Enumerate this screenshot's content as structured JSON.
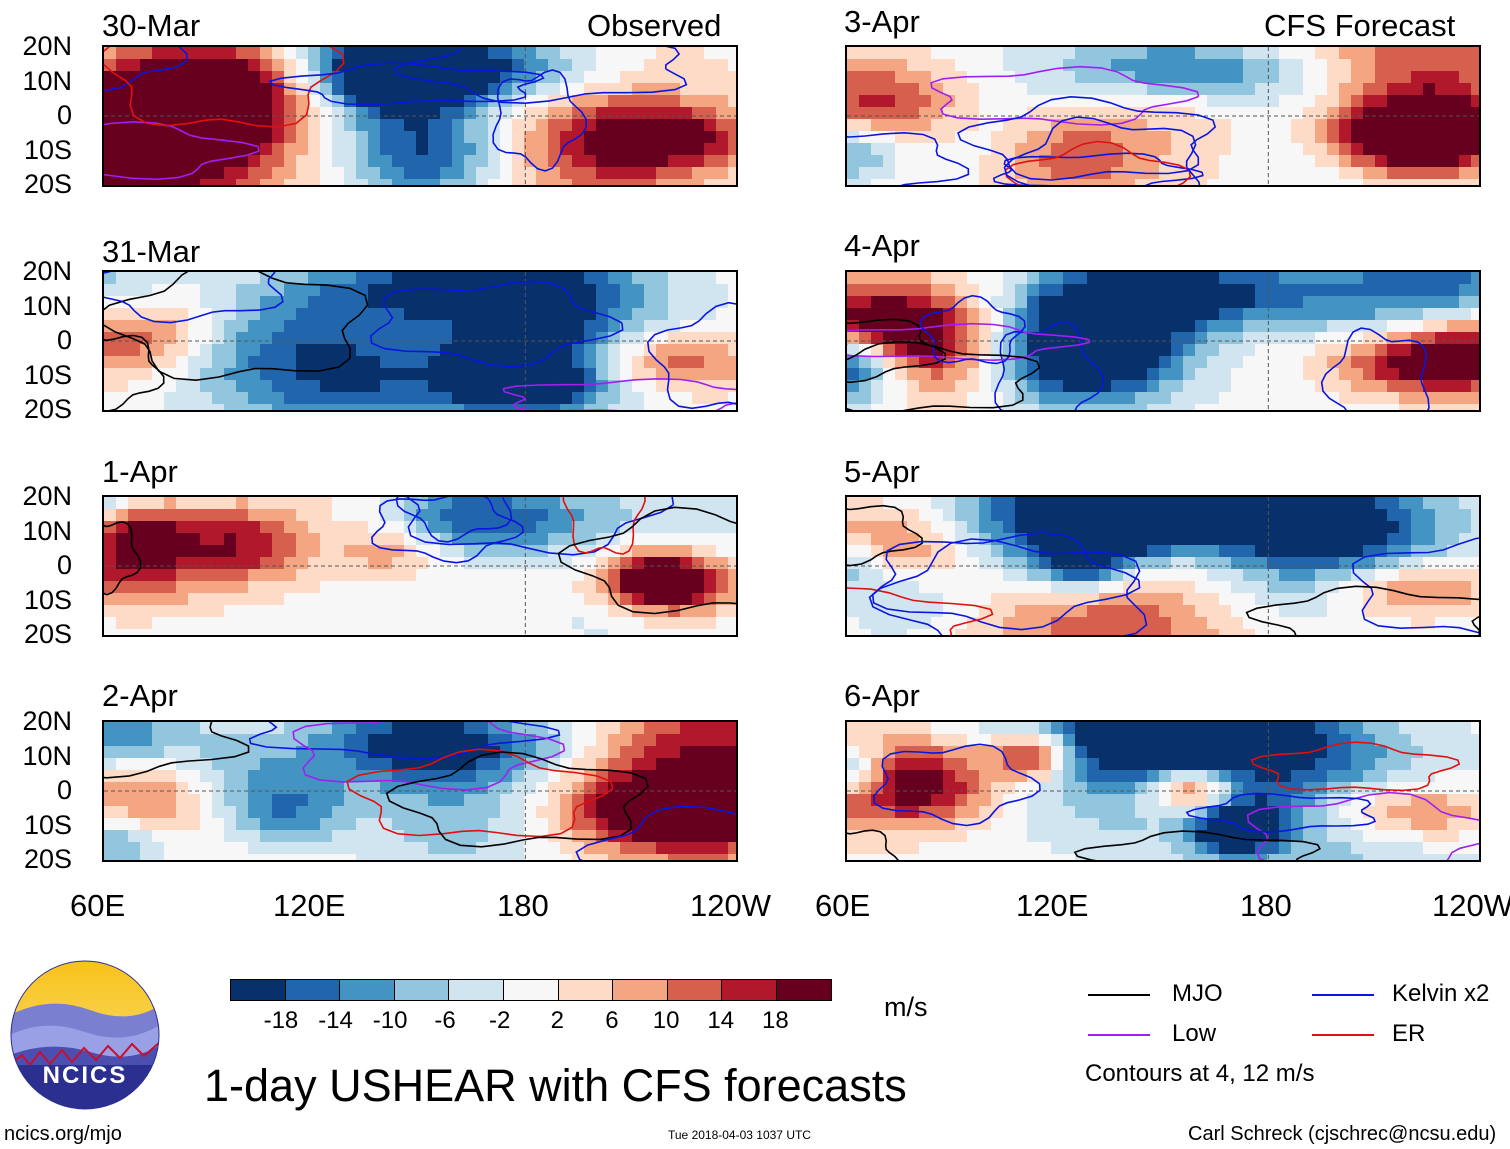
{
  "header": {
    "left_title": "Observed",
    "right_title": "CFS Forecast"
  },
  "panels": {
    "left": [
      "30-Mar",
      "31-Mar",
      "1-Apr",
      "2-Apr"
    ],
    "right": [
      "3-Apr",
      "4-Apr",
      "5-Apr",
      "6-Apr"
    ]
  },
  "chart_data": {
    "type": "heatmap",
    "title": "1-day USHEAR with CFS forecasts",
    "variable": "USHEAR",
    "units": "m/s",
    "y_ticks": [
      "20N",
      "10N",
      "0",
      "10S",
      "20S"
    ],
    "x_ticks": [
      "60E",
      "120E",
      "180",
      "120W"
    ],
    "x_range": [
      60,
      240
    ],
    "y_range": [
      -20,
      20
    ],
    "colorbar_levels": [
      -18,
      -14,
      -10,
      -6,
      -2,
      2,
      6,
      10,
      14,
      18
    ],
    "colorbar_labels": [
      "-18",
      "-14",
      "-10",
      "-6",
      "-2",
      "2",
      "6",
      "10",
      "14",
      "18"
    ],
    "colorbar_colors": [
      "#08306b",
      "#2166ac",
      "#4393c3",
      "#92c5de",
      "#d1e5f0",
      "#f7f7f7",
      "#fddbc7",
      "#f4a582",
      "#d6604d",
      "#b2182b",
      "#67001f"
    ],
    "contour_legend": [
      {
        "name": "MJO",
        "color": "#000000"
      },
      {
        "name": "Kelvin x2",
        "color": "#0a16e0"
      },
      {
        "name": "Low",
        "color": "#a020f0"
      },
      {
        "name": "ER",
        "color": "#e01010"
      }
    ],
    "contour_note": "Contours at 4, 12 m/s"
  },
  "footer": {
    "logo_text": "NCICS",
    "url": "ncics.org/mjo",
    "timestamp": "Tue 2018-04-03 1037 UTC",
    "credit": "Carl Schreck (cjschrec@ncsu.edu)"
  }
}
